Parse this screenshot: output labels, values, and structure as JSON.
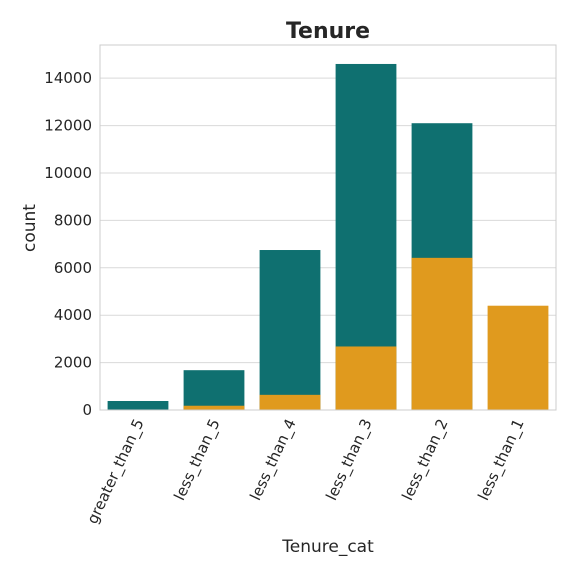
{
  "chart_data": {
    "type": "bar",
    "title": "Tenure",
    "xlabel": "Tenure_cat",
    "ylabel": "count",
    "categories": [
      "greater_than_5",
      "less_than_5",
      "less_than_4",
      "less_than_3",
      "less_than_2",
      "less_than_1"
    ],
    "yticks": [
      "0",
      "2000",
      "4000",
      "6000",
      "8000",
      "10000",
      "12000",
      "14000"
    ],
    "ylim": [
      0,
      15400
    ],
    "grid": true,
    "series": [
      {
        "color": "#0f7070",
        "values": [
          380,
          1680,
          6750,
          14600,
          12100,
          0
        ]
      },
      {
        "color": "#e09a1e",
        "values": [
          0,
          180,
          640,
          2680,
          6420,
          4400
        ]
      }
    ]
  }
}
